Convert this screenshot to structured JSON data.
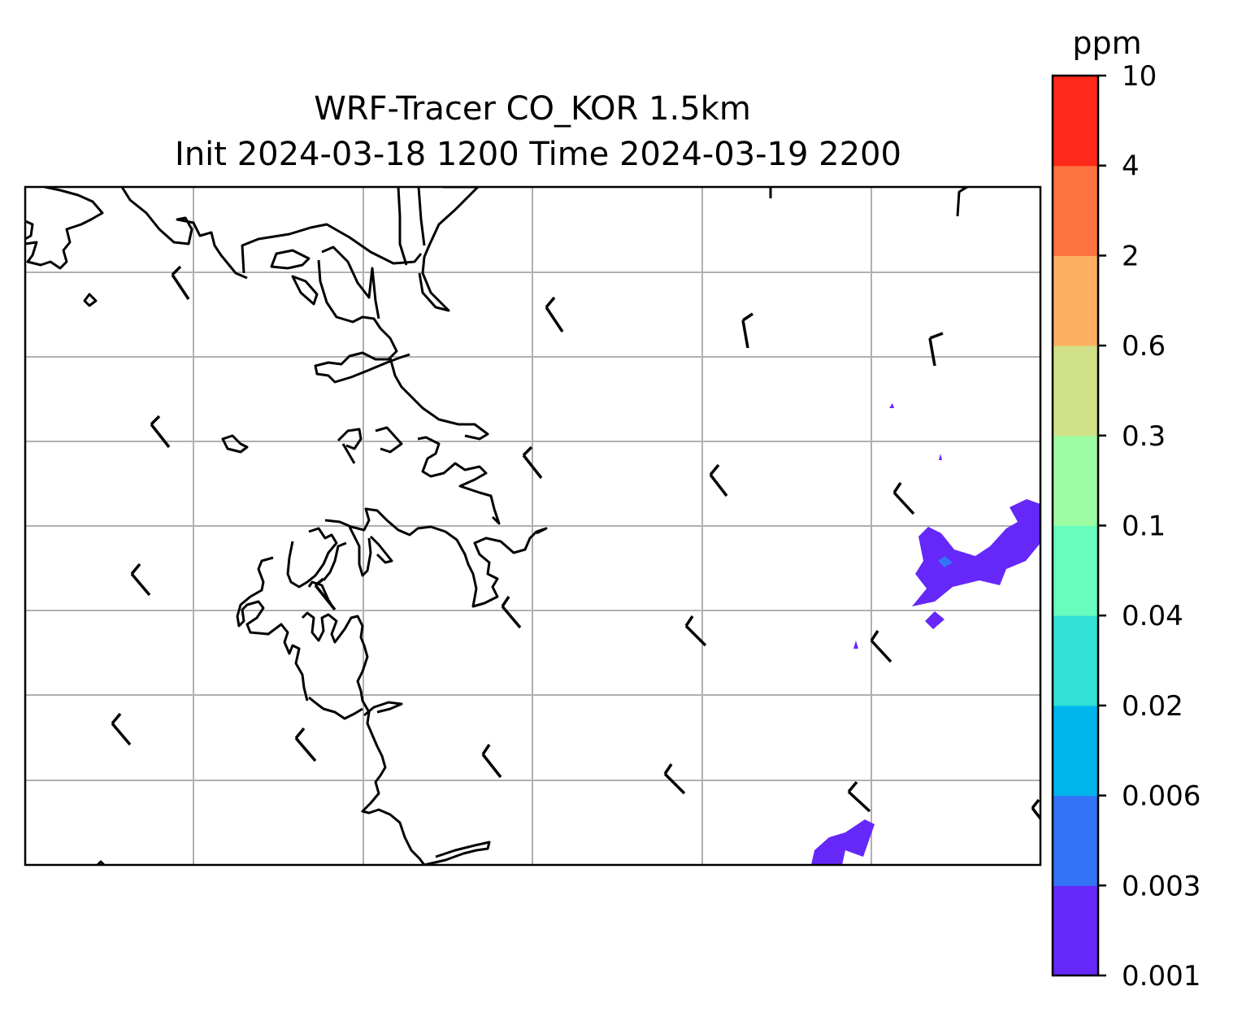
{
  "title": {
    "line1": "WRF-Tracer CO_KOR 1.5km",
    "line2": "Init 2024-03-18 1200 Time 2024-03-19 2200"
  },
  "colorbar": {
    "unit": "ppm",
    "levels": [
      "0.001",
      "0.003",
      "0.006",
      "0.02",
      "0.04",
      "0.1",
      "0.3",
      "0.6",
      "2",
      "4",
      "10"
    ],
    "colors": [
      "#6528f8",
      "#3374f6",
      "#00b5ec",
      "#31e0d6",
      "#68fcbd",
      "#9cfda2",
      "#d0e188",
      "#feb062",
      "#fe7140",
      "#fe291a"
    ]
  },
  "map": {
    "gridlines": true,
    "coastline_color": "#000000",
    "gridline_color": "#b0b0b0",
    "wind_barbs": true
  }
}
